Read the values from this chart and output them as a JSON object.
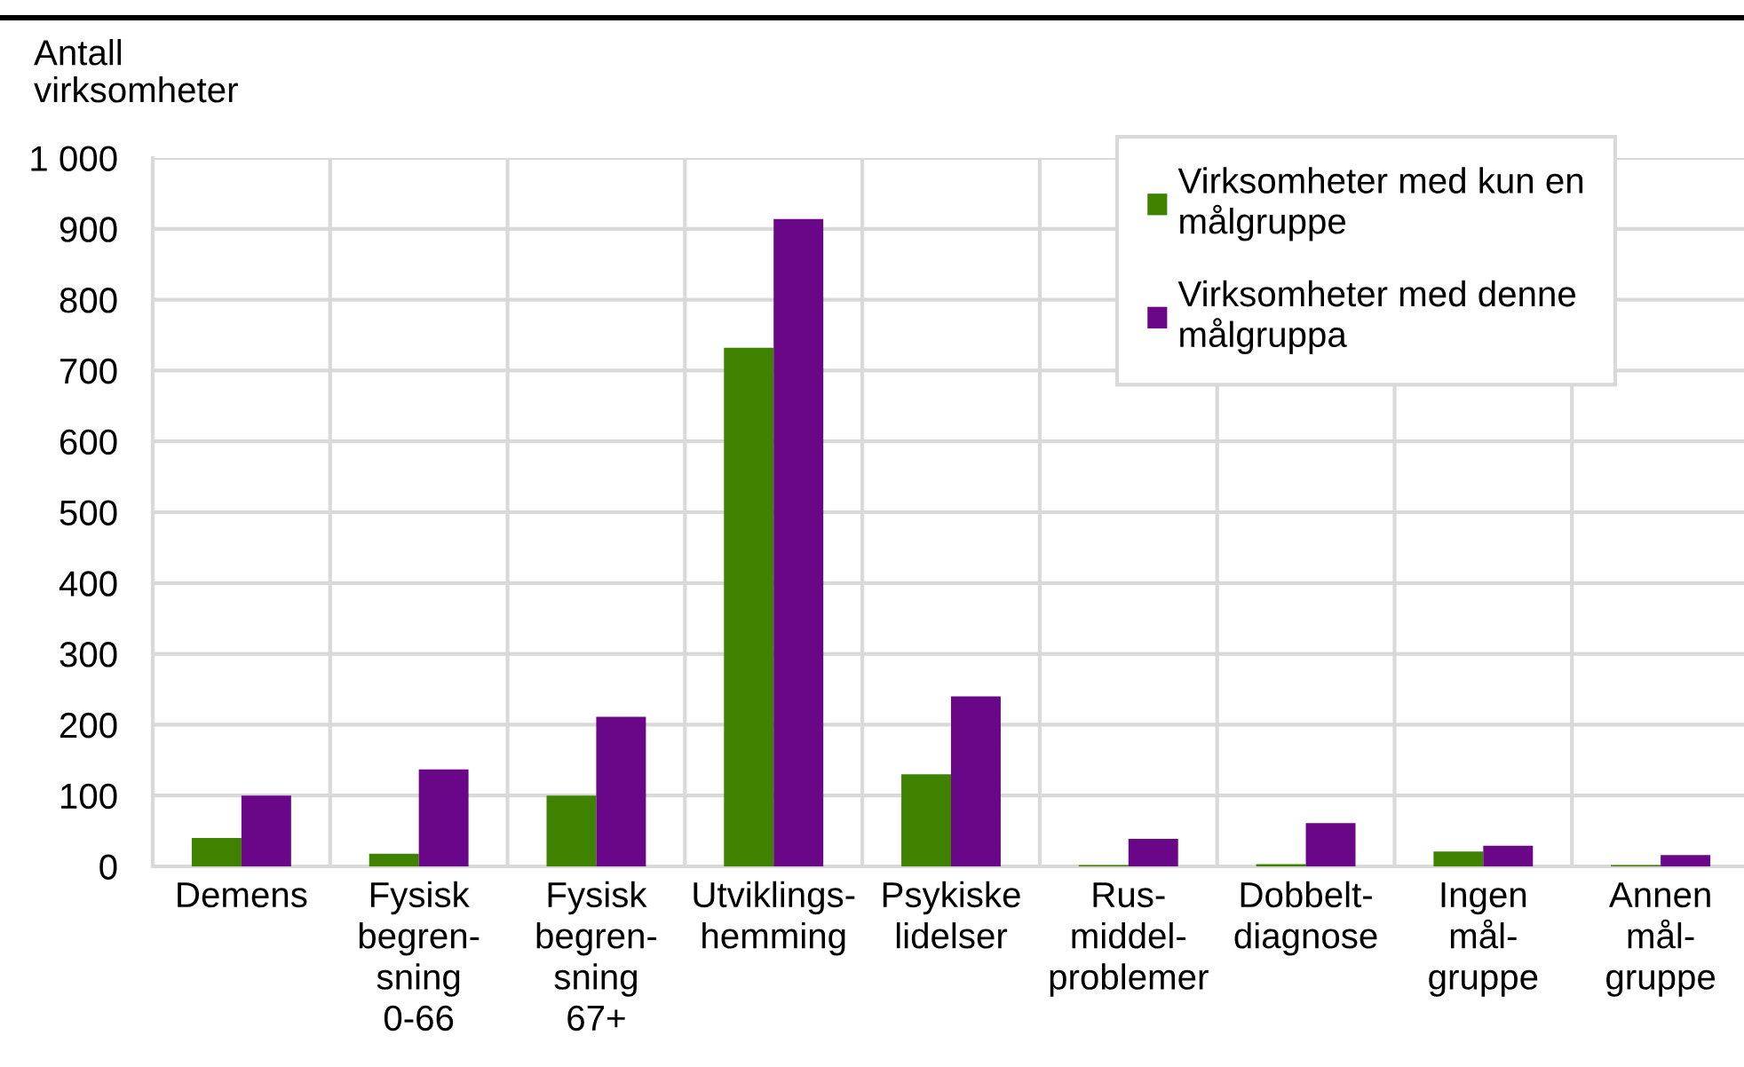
{
  "chart_data": {
    "type": "bar",
    "ylabel": "Antall\nvirksomheter",
    "categories": [
      "Demens",
      "Fysisk\nbegren-\nsning\n0-66",
      "Fysisk\nbegren-\nsning\n67+",
      "Utviklings-\nhemming",
      "Psykiske\nlidelser",
      "Rus-\nmiddel-\nproblemer",
      "Dobbelt-\ndiagnose",
      "Ingen\nmål-\ngruppe",
      "Annen\nmål-\ngruppe"
    ],
    "series": [
      {
        "name": "Virksomheter med kun en\nmålgruppe",
        "color": "#3f8200",
        "values": [
          40,
          18,
          100,
          732,
          130,
          2,
          3,
          21,
          2
        ]
      },
      {
        "name": "Virksomheter med denne\nmålgruppa",
        "color": "#690788",
        "values": [
          100,
          137,
          211,
          914,
          240,
          39,
          61,
          29,
          16
        ]
      }
    ],
    "ylim": [
      0,
      1000
    ],
    "yticks": [
      0,
      100,
      200,
      300,
      400,
      500,
      600,
      700,
      800,
      900,
      {
        "value": 1000,
        "label": "1 000"
      }
    ],
    "grid": true,
    "legend": "top right"
  }
}
